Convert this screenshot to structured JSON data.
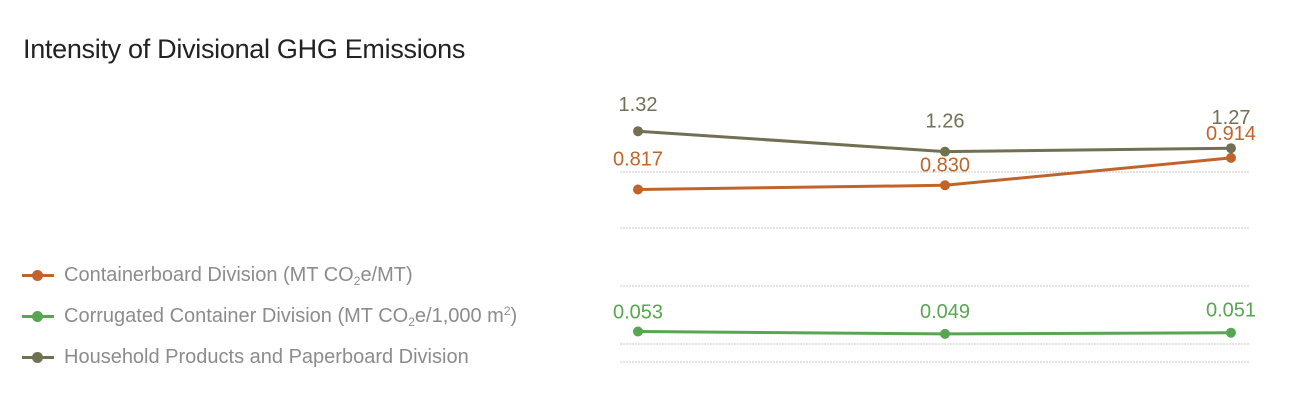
{
  "chart_data": {
    "type": "line",
    "title": "Intensity of Divisional GHG Emissions",
    "categories": [
      "",
      "",
      ""
    ],
    "series": [
      {
        "key": "containerboard",
        "name": "Containerboard Division (MT CO₂e/MT)",
        "color": "#c0642c",
        "values": [
          0.817,
          0.83,
          0.914
        ],
        "labels": [
          "0.817",
          "0.830",
          "0.914"
        ]
      },
      {
        "key": "corrugated",
        "name": "Corrugated Container Division (MT CO₂e/1,000 m²)",
        "color": "#58a552",
        "values": [
          0.053,
          0.049,
          0.051
        ],
        "labels": [
          "0.053",
          "0.049",
          "0.051"
        ]
      },
      {
        "key": "household",
        "name": "Household Products and Paperboard Division",
        "color": "#717052",
        "values": [
          1.32,
          1.26,
          1.27
        ],
        "labels": [
          "1.32",
          "1.26",
          "1.27"
        ]
      }
    ],
    "grid": true,
    "legend_position": "left"
  },
  "legend": {
    "containerboard": {
      "pre": "Containerboard Division (MT CO",
      "sub": "2",
      "post": "e/MT)"
    },
    "corrugated": {
      "pre": "Corrugated Container Division (MT CO",
      "sub": "2",
      "mid": "e/1,000 m",
      "sup": "2",
      "post": ")"
    },
    "household": {
      "text": "Household Products and Paperboard Division"
    }
  }
}
